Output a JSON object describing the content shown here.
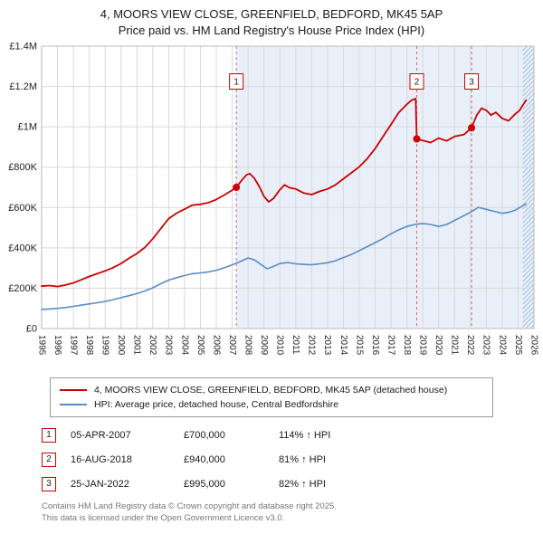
{
  "title": "4, MOORS VIEW CLOSE, GREENFIELD, BEDFORD, MK45 5AP",
  "subtitle": "Price paid vs. HM Land Registry's House Price Index (HPI)",
  "legend": {
    "property": "4, MOORS VIEW CLOSE, GREENFIELD, BEDFORD, MK45 5AP (detached house)",
    "hpi": "HPI: Average price, detached house, Central Bedfordshire"
  },
  "table": {
    "rows": [
      {
        "num": "1",
        "date": "05-APR-2007",
        "price": "£700,000",
        "hpi": "114% ↑ HPI"
      },
      {
        "num": "2",
        "date": "16-AUG-2018",
        "price": "£940,000",
        "hpi": "81% ↑ HPI"
      },
      {
        "num": "3",
        "date": "25-JAN-2022",
        "price": "£995,000",
        "hpi": "82% ↑ HPI"
      }
    ]
  },
  "footer": {
    "line1": "Contains HM Land Registry data © Crown copyright and database right 2025.",
    "line2": "This data is licensed under the Open Government Licence v3.0."
  },
  "chart_data": {
    "type": "line",
    "title": "4, MOORS VIEW CLOSE, GREENFIELD, BEDFORD, MK45 5AP",
    "subtitle": "Price paid vs. HM Land Registry's House Price Index (HPI)",
    "y_unit": "GBP thousands",
    "x_range": [
      1995,
      2026
    ],
    "y_range": [
      0,
      1400
    ],
    "x_ticks": [
      1995,
      1996,
      1997,
      1998,
      1999,
      2000,
      2001,
      2002,
      2003,
      2004,
      2005,
      2006,
      2007,
      2008,
      2009,
      2010,
      2011,
      2012,
      2013,
      2014,
      2015,
      2016,
      2017,
      2018,
      2019,
      2020,
      2021,
      2022,
      2023,
      2024,
      2025,
      2026
    ],
    "y_ticks": [
      {
        "v": 0,
        "label": "£0"
      },
      {
        "v": 200,
        "label": "£200K"
      },
      {
        "v": 400,
        "label": "£400K"
      },
      {
        "v": 600,
        "label": "£600K"
      },
      {
        "v": 800,
        "label": "£800K"
      },
      {
        "v": 1000,
        "label": "£1M"
      },
      {
        "v": 1200,
        "label": "£1.2M"
      },
      {
        "v": 1400,
        "label": "£1.4M"
      }
    ],
    "shade_start": 2007.26,
    "hatch_start": 2025.3,
    "marker_y": 1225,
    "colors": {
      "property": "#cc0000",
      "hpi": "#5b8cc8",
      "sale_line": "#dd6666",
      "shade": "#e8eff9",
      "hatch": "#a8c0dd",
      "grid": "#d9d9d9"
    },
    "series": [
      {
        "name": "HPI: Average price, detached house, Central Bedfordshire",
        "color": "#5b8cc8",
        "width": 1.6,
        "points": [
          [
            1995,
            95
          ],
          [
            1995.5,
            97
          ],
          [
            1996,
            100
          ],
          [
            1996.5,
            104
          ],
          [
            1997,
            110
          ],
          [
            1997.5,
            116
          ],
          [
            1998,
            122
          ],
          [
            1998.5,
            128
          ],
          [
            1999,
            134
          ],
          [
            1999.5,
            143
          ],
          [
            2000,
            153
          ],
          [
            2000.5,
            163
          ],
          [
            2001,
            173
          ],
          [
            2001.5,
            186
          ],
          [
            2002,
            202
          ],
          [
            2002.5,
            222
          ],
          [
            2003,
            240
          ],
          [
            2003.5,
            252
          ],
          [
            2004,
            263
          ],
          [
            2004.5,
            272
          ],
          [
            2005,
            276
          ],
          [
            2005.5,
            281
          ],
          [
            2006,
            289
          ],
          [
            2006.5,
            301
          ],
          [
            2007,
            316
          ],
          [
            2007.5,
            332
          ],
          [
            2008,
            350
          ],
          [
            2008.4,
            340
          ],
          [
            2008.8,
            318
          ],
          [
            2009.2,
            296
          ],
          [
            2009.6,
            308
          ],
          [
            2010,
            322
          ],
          [
            2010.5,
            327
          ],
          [
            2011,
            321
          ],
          [
            2011.5,
            318
          ],
          [
            2012,
            316
          ],
          [
            2012.5,
            321
          ],
          [
            2013,
            326
          ],
          [
            2013.5,
            336
          ],
          [
            2014,
            352
          ],
          [
            2014.5,
            367
          ],
          [
            2015,
            386
          ],
          [
            2015.5,
            406
          ],
          [
            2016,
            426
          ],
          [
            2016.5,
            446
          ],
          [
            2017,
            470
          ],
          [
            2017.5,
            490
          ],
          [
            2018,
            506
          ],
          [
            2018.5,
            516
          ],
          [
            2019,
            521
          ],
          [
            2019.5,
            516
          ],
          [
            2020,
            506
          ],
          [
            2020.5,
            516
          ],
          [
            2021,
            536
          ],
          [
            2021.5,
            556
          ],
          [
            2022,
            576
          ],
          [
            2022.5,
            601
          ],
          [
            2023,
            591
          ],
          [
            2023.5,
            581
          ],
          [
            2024,
            571
          ],
          [
            2024.4,
            576
          ],
          [
            2024.8,
            586
          ],
          [
            2025.1,
            600
          ],
          [
            2025.5,
            618
          ]
        ]
      },
      {
        "name": "4, MOORS VIEW CLOSE, GREENFIELD, BEDFORD, MK45 5AP (detached house)",
        "color": "#cc0000",
        "width": 1.8,
        "points": [
          [
            1995,
            210
          ],
          [
            1995.5,
            213
          ],
          [
            1996,
            208
          ],
          [
            1996.5,
            216
          ],
          [
            1997,
            226
          ],
          [
            1997.5,
            242
          ],
          [
            1998,
            258
          ],
          [
            1998.5,
            272
          ],
          [
            1999,
            286
          ],
          [
            1999.5,
            302
          ],
          [
            2000,
            322
          ],
          [
            2000.5,
            348
          ],
          [
            2001,
            372
          ],
          [
            2001.5,
            402
          ],
          [
            2002,
            445
          ],
          [
            2002.5,
            495
          ],
          [
            2003,
            545
          ],
          [
            2003.5,
            572
          ],
          [
            2004,
            592
          ],
          [
            2004.5,
            612
          ],
          [
            2005,
            616
          ],
          [
            2005.5,
            624
          ],
          [
            2006,
            640
          ],
          [
            2006.5,
            662
          ],
          [
            2007,
            686
          ],
          [
            2007.26,
            700
          ],
          [
            2007.6,
            735
          ],
          [
            2007.9,
            762
          ],
          [
            2008.1,
            768
          ],
          [
            2008.4,
            745
          ],
          [
            2008.7,
            705
          ],
          [
            2009,
            655
          ],
          [
            2009.3,
            628
          ],
          [
            2009.6,
            645
          ],
          [
            2010,
            688
          ],
          [
            2010.3,
            712
          ],
          [
            2010.6,
            698
          ],
          [
            2011,
            692
          ],
          [
            2011.5,
            672
          ],
          [
            2012,
            664
          ],
          [
            2012.5,
            680
          ],
          [
            2013,
            692
          ],
          [
            2013.5,
            712
          ],
          [
            2014,
            742
          ],
          [
            2014.5,
            772
          ],
          [
            2015,
            802
          ],
          [
            2015.5,
            842
          ],
          [
            2016,
            892
          ],
          [
            2016.5,
            952
          ],
          [
            2017,
            1012
          ],
          [
            2017.5,
            1072
          ],
          [
            2018,
            1112
          ],
          [
            2018.3,
            1132
          ],
          [
            2018.55,
            1140
          ],
          [
            2018.62,
            940
          ],
          [
            2019,
            932
          ],
          [
            2019.5,
            922
          ],
          [
            2020,
            944
          ],
          [
            2020.5,
            930
          ],
          [
            2021,
            952
          ],
          [
            2021.6,
            962
          ],
          [
            2022.07,
            995
          ],
          [
            2022.4,
            1058
          ],
          [
            2022.7,
            1092
          ],
          [
            2023,
            1082
          ],
          [
            2023.3,
            1058
          ],
          [
            2023.6,
            1072
          ],
          [
            2024,
            1042
          ],
          [
            2024.4,
            1030
          ],
          [
            2024.8,
            1062
          ],
          [
            2025.1,
            1082
          ],
          [
            2025.5,
            1132
          ]
        ]
      }
    ],
    "sales": [
      {
        "n": "1",
        "x": 2007.26,
        "y": 700,
        "date": "05-APR-2007",
        "price": 700000,
        "hpi_pct": "114% ↑ HPI"
      },
      {
        "n": "2",
        "x": 2018.62,
        "y": 940,
        "date": "16-AUG-2018",
        "price": 940000,
        "hpi_pct": "81% ↑ HPI"
      },
      {
        "n": "3",
        "x": 2022.07,
        "y": 995,
        "date": "25-JAN-2022",
        "price": 995000,
        "hpi_pct": "82% ↑ HPI"
      }
    ]
  }
}
